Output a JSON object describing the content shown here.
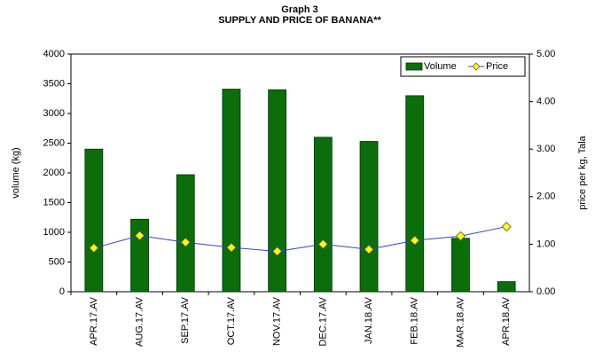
{
  "chart_data": {
    "type": "bar_line",
    "title": "Graph 3",
    "subtitle": "SUPPLY AND PRICE OF BANANA**",
    "ylabel": "volume (kg)",
    "y2label": "price per kg, Tala",
    "categories": [
      "APR.17.AV",
      "AUG.17.AV",
      "SEP.17.AV",
      "OCT.17.AV",
      "NOV.17.AV",
      "DEC.17.AV",
      "JAN.18.AV",
      "FEB.18.AV",
      "MAR.18.AV",
      "APR.18.AV"
    ],
    "series": [
      {
        "name": "Volume",
        "type": "bar",
        "color": "#0b6e0b",
        "values": [
          2400,
          1220,
          1970,
          3410,
          3400,
          2600,
          2530,
          3300,
          900,
          170
        ]
      },
      {
        "name": "Price",
        "type": "line",
        "axis": "y2",
        "color": "#3344cc",
        "marker_color": "#ffff00",
        "values": [
          0.92,
          1.18,
          1.04,
          0.93,
          0.85,
          1.0,
          0.89,
          1.08,
          1.17,
          1.37
        ]
      }
    ],
    "ylim": [
      0,
      4000
    ],
    "yticks": [
      0,
      500,
      1000,
      1500,
      2000,
      2500,
      3000,
      3500,
      4000
    ],
    "y2lim": [
      0,
      5
    ],
    "y2ticks": [
      {
        "value": 0,
        "label": "0.00"
      },
      {
        "value": 1,
        "label": "1.00"
      },
      {
        "value": 2,
        "label": "2.00"
      },
      {
        "value": 3,
        "label": "3.00"
      },
      {
        "value": 4,
        "label": "4.00"
      },
      {
        "value": 5,
        "label": "5.00"
      }
    ],
    "legend": "top-right"
  }
}
